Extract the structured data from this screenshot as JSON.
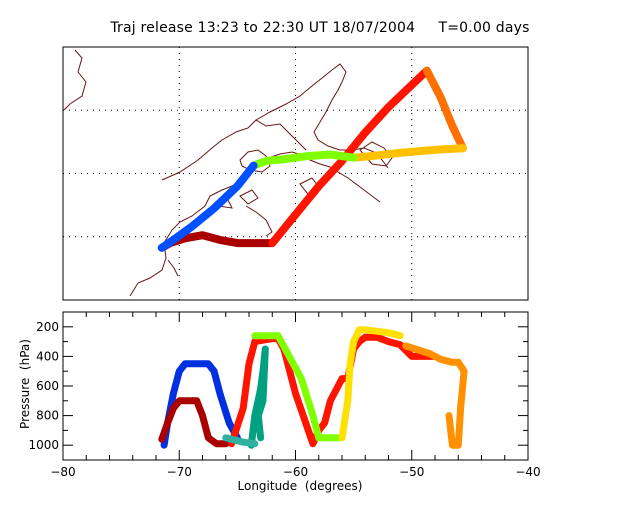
{
  "title": "Traj release 13:23 to 22:30 UT 18/07/2004     T=0.00 days",
  "colors": {
    "frame": "#000000",
    "coast": "#6b1414",
    "grid": "#000000"
  },
  "chart_data": [
    {
      "type": "line",
      "panel": "map",
      "title": "Traj release 13:23 to 22:30 UT 18/07/2004     T=0.00 days",
      "xlim": [
        -80,
        -40
      ],
      "ylim": [
        38,
        54
      ],
      "grid": true,
      "series": [
        {
          "color": "#aa0000",
          "x": [
            -71.5,
            -70.8,
            -69.5,
            -68.0,
            -66.5,
            -65.0,
            -63.5,
            -62.0
          ],
          "y": [
            41.3,
            41.6,
            41.9,
            42.1,
            41.8,
            41.6,
            41.6,
            41.6
          ]
        },
        {
          "color": "#ff1400",
          "x": [
            -62.0,
            -60.0,
            -58.0,
            -56.0,
            -54.0,
            -52.0,
            -50.0,
            -48.7
          ],
          "y": [
            41.6,
            43.4,
            45.2,
            46.8,
            48.6,
            50.2,
            51.6,
            52.5
          ]
        },
        {
          "color": "#ff7000",
          "x": [
            -48.7,
            -47.5,
            -46.5,
            -45.6
          ],
          "y": [
            52.5,
            50.8,
            49.0,
            47.6
          ]
        },
        {
          "color": "#ffc000",
          "x": [
            -45.6,
            -48.0,
            -51.0,
            -53.5,
            -55.0
          ],
          "y": [
            47.6,
            47.5,
            47.3,
            47.1,
            47.0
          ]
        },
        {
          "color": "#80ff00",
          "x": [
            -55.0,
            -57.0,
            -59.0,
            -61.0,
            -62.5,
            -63.6
          ],
          "y": [
            47.0,
            47.2,
            47.1,
            46.9,
            46.8,
            46.5
          ]
        },
        {
          "color": "#0050ff",
          "x": [
            -63.6,
            -65.0,
            -67.0,
            -69.0,
            -70.5,
            -71.5
          ],
          "y": [
            46.5,
            45.2,
            43.8,
            42.6,
            41.8,
            41.3
          ]
        }
      ]
    },
    {
      "type": "line",
      "panel": "pressure",
      "xlabel": "Longitude  (degrees)",
      "ylabel": "Pressure  (hPa)",
      "xlim": [
        -80,
        -40
      ],
      "ylim": [
        1100,
        100
      ],
      "x_ticks": [
        -80,
        -70,
        -60,
        -50,
        -40
      ],
      "y_ticks": [
        200,
        400,
        600,
        800,
        1000
      ],
      "series": [
        {
          "color": "#0030e0",
          "x": [
            -71.3,
            -71.0,
            -70.5,
            -70.0,
            -69.5,
            -68.0,
            -67.5,
            -67.0,
            -66.5,
            -65.7,
            -65.0
          ],
          "y": [
            1000,
            850,
            650,
            500,
            450,
            450,
            450,
            500,
            650,
            850,
            950
          ]
        },
        {
          "color": "#aa0000",
          "x": [
            -71.5,
            -71.0,
            -70.5,
            -70.0,
            -68.5,
            -68.0,
            -67.5,
            -66.8,
            -66.0,
            -65.3
          ],
          "y": [
            960,
            850,
            750,
            700,
            700,
            800,
            950,
            990,
            990,
            950
          ]
        },
        {
          "color": "#ff1400",
          "x": [
            -65.5,
            -64.5,
            -64.0,
            -63.5,
            -62.0,
            -61.5,
            -61.0,
            -60.0,
            -58.5,
            -58.0,
            -57.5,
            -57.0,
            -56.0,
            -55.5,
            -55.0,
            -54.5,
            -54.0,
            -53.0,
            -52.0,
            -51.0,
            -50.0,
            -49.0,
            -48.0
          ],
          "y": [
            990,
            750,
            450,
            300,
            280,
            280,
            350,
            650,
            990,
            900,
            850,
            700,
            550,
            550,
            350,
            300,
            270,
            270,
            300,
            320,
            400,
            400,
            400
          ]
        },
        {
          "color": "#00a080",
          "x": [
            -63.8,
            -63.5,
            -63.0,
            -62.8,
            -62.6,
            -62.8,
            -63.2,
            -63.0
          ],
          "y": [
            1000,
            800,
            620,
            500,
            350,
            700,
            800,
            950
          ]
        },
        {
          "color": "#30b0a0",
          "x": [
            -66.0,
            -64.5,
            -63.5
          ],
          "y": [
            950,
            980,
            990
          ]
        },
        {
          "color": "#80ff00",
          "x": [
            -63.5,
            -61.5,
            -59.5,
            -58.5,
            -58.0,
            -57.0,
            -56.0
          ],
          "y": [
            260,
            260,
            550,
            800,
            950,
            950,
            950
          ]
        },
        {
          "color": "#ffe000",
          "x": [
            -56.0,
            -55.5,
            -55.3,
            -55.0,
            -54.5,
            -54.0,
            -52.0,
            -51.0
          ],
          "y": [
            950,
            700,
            450,
            300,
            220,
            220,
            240,
            260
          ]
        },
        {
          "color": "#ff9000",
          "x": [
            -50.5,
            -48.5,
            -47.5,
            -46.5,
            -46.0,
            -45.5,
            -45.8,
            -46.0,
            -46.5,
            -46.8
          ],
          "y": [
            330,
            380,
            420,
            440,
            440,
            500,
            750,
            1000,
            1000,
            800
          ]
        }
      ]
    }
  ]
}
